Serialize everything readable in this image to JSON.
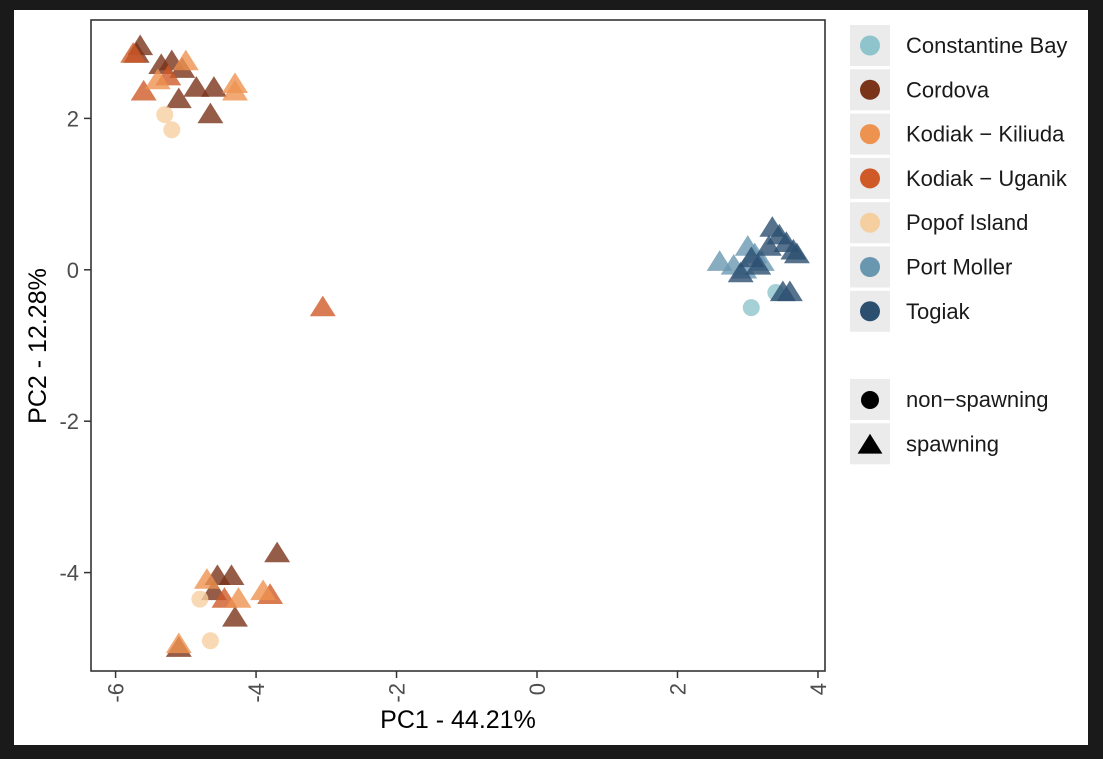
{
  "chart_data": {
    "type": "scatter",
    "xlabel": "PC1 - 44.21%",
    "ylabel": "PC2 - 12.28%",
    "xlim": [
      -6.35,
      4.1
    ],
    "ylim": [
      -5.3,
      3.3
    ],
    "xticks": [
      -6,
      -4,
      -2,
      0,
      2,
      4
    ],
    "yticks": [
      2,
      0,
      -2,
      -4
    ],
    "xtick_labels": [
      "-6",
      "-4",
      "-2",
      "0",
      "2",
      "4"
    ],
    "ytick_labels": [
      "2",
      "0",
      "-2",
      "-4"
    ],
    "grid": false,
    "legend_position": "right",
    "colors": {
      "Constantine Bay": "#8fc4cc",
      "Cordova": "#7a3419",
      "Kodiak - Kiliuda": "#ee9250",
      "Kodiak - Uganik": "#cf5a28",
      "Popof Island": "#f6cfa1",
      "Port Moller": "#6a97b0",
      "Togiak": "#2c4f70"
    },
    "legend_populations": [
      "Constantine Bay",
      "Cordova",
      "Kodiak − Kiliuda",
      "Kodiak − Uganik",
      "Popof Island",
      "Port Moller",
      "Togiak"
    ],
    "legend_shapes": [
      {
        "label": "non−spawning",
        "shape": "circle"
      },
      {
        "label": "spawning",
        "shape": "triangle"
      }
    ],
    "series": [
      {
        "population": "Cordova",
        "shape": "triangle",
        "points": [
          [
            -5.65,
            2.95
          ],
          [
            -5.7,
            2.85
          ],
          [
            -5.35,
            2.7
          ],
          [
            -5.2,
            2.75
          ],
          [
            -5.05,
            2.65
          ],
          [
            -4.85,
            2.4
          ],
          [
            -4.6,
            2.4
          ],
          [
            -5.1,
            2.25
          ],
          [
            -4.65,
            2.05
          ],
          [
            -4.55,
            -4.05
          ],
          [
            -4.6,
            -4.25
          ],
          [
            -4.35,
            -4.05
          ],
          [
            -4.3,
            -4.6
          ],
          [
            -3.7,
            -3.75
          ],
          [
            -5.1,
            -5.0
          ]
        ]
      },
      {
        "population": "Kodiak - Uganik",
        "shape": "triangle",
        "points": [
          [
            -5.75,
            2.85
          ],
          [
            -5.6,
            2.35
          ],
          [
            -5.25,
            2.55
          ],
          [
            -3.05,
            -0.5
          ],
          [
            -4.45,
            -4.35
          ],
          [
            -3.8,
            -4.3
          ]
        ]
      },
      {
        "population": "Kodiak - Kiliuda",
        "shape": "triangle",
        "points": [
          [
            -5.0,
            2.75
          ],
          [
            -4.3,
            2.45
          ],
          [
            -4.3,
            2.35
          ],
          [
            -5.4,
            2.5
          ],
          [
            -4.7,
            -4.1
          ],
          [
            -4.25,
            -4.35
          ],
          [
            -3.9,
            -4.25
          ],
          [
            -5.1,
            -4.95
          ]
        ]
      },
      {
        "population": "Popof Island",
        "shape": "circle",
        "points": [
          [
            -5.3,
            2.05
          ],
          [
            -5.2,
            1.85
          ],
          [
            -4.8,
            -4.35
          ],
          [
            -4.65,
            -4.9
          ]
        ]
      },
      {
        "population": "Constantine Bay",
        "shape": "circle",
        "points": [
          [
            3.05,
            -0.5
          ],
          [
            3.4,
            -0.3
          ]
        ]
      },
      {
        "population": "Port Moller",
        "shape": "triangle",
        "points": [
          [
            2.6,
            0.1
          ],
          [
            2.8,
            0.05
          ],
          [
            3.0,
            0.3
          ],
          [
            3.1,
            0.2
          ],
          [
            3.2,
            0.1
          ],
          [
            2.95,
            0.0
          ]
        ]
      },
      {
        "population": "Togiak",
        "shape": "triangle",
        "points": [
          [
            3.35,
            0.55
          ],
          [
            3.45,
            0.45
          ],
          [
            3.3,
            0.3
          ],
          [
            3.55,
            0.35
          ],
          [
            3.65,
            0.25
          ],
          [
            3.7,
            0.2
          ],
          [
            3.6,
            -0.3
          ],
          [
            3.5,
            -0.3
          ],
          [
            3.05,
            0.15
          ],
          [
            2.9,
            -0.05
          ],
          [
            3.15,
            0.05
          ]
        ]
      }
    ]
  }
}
